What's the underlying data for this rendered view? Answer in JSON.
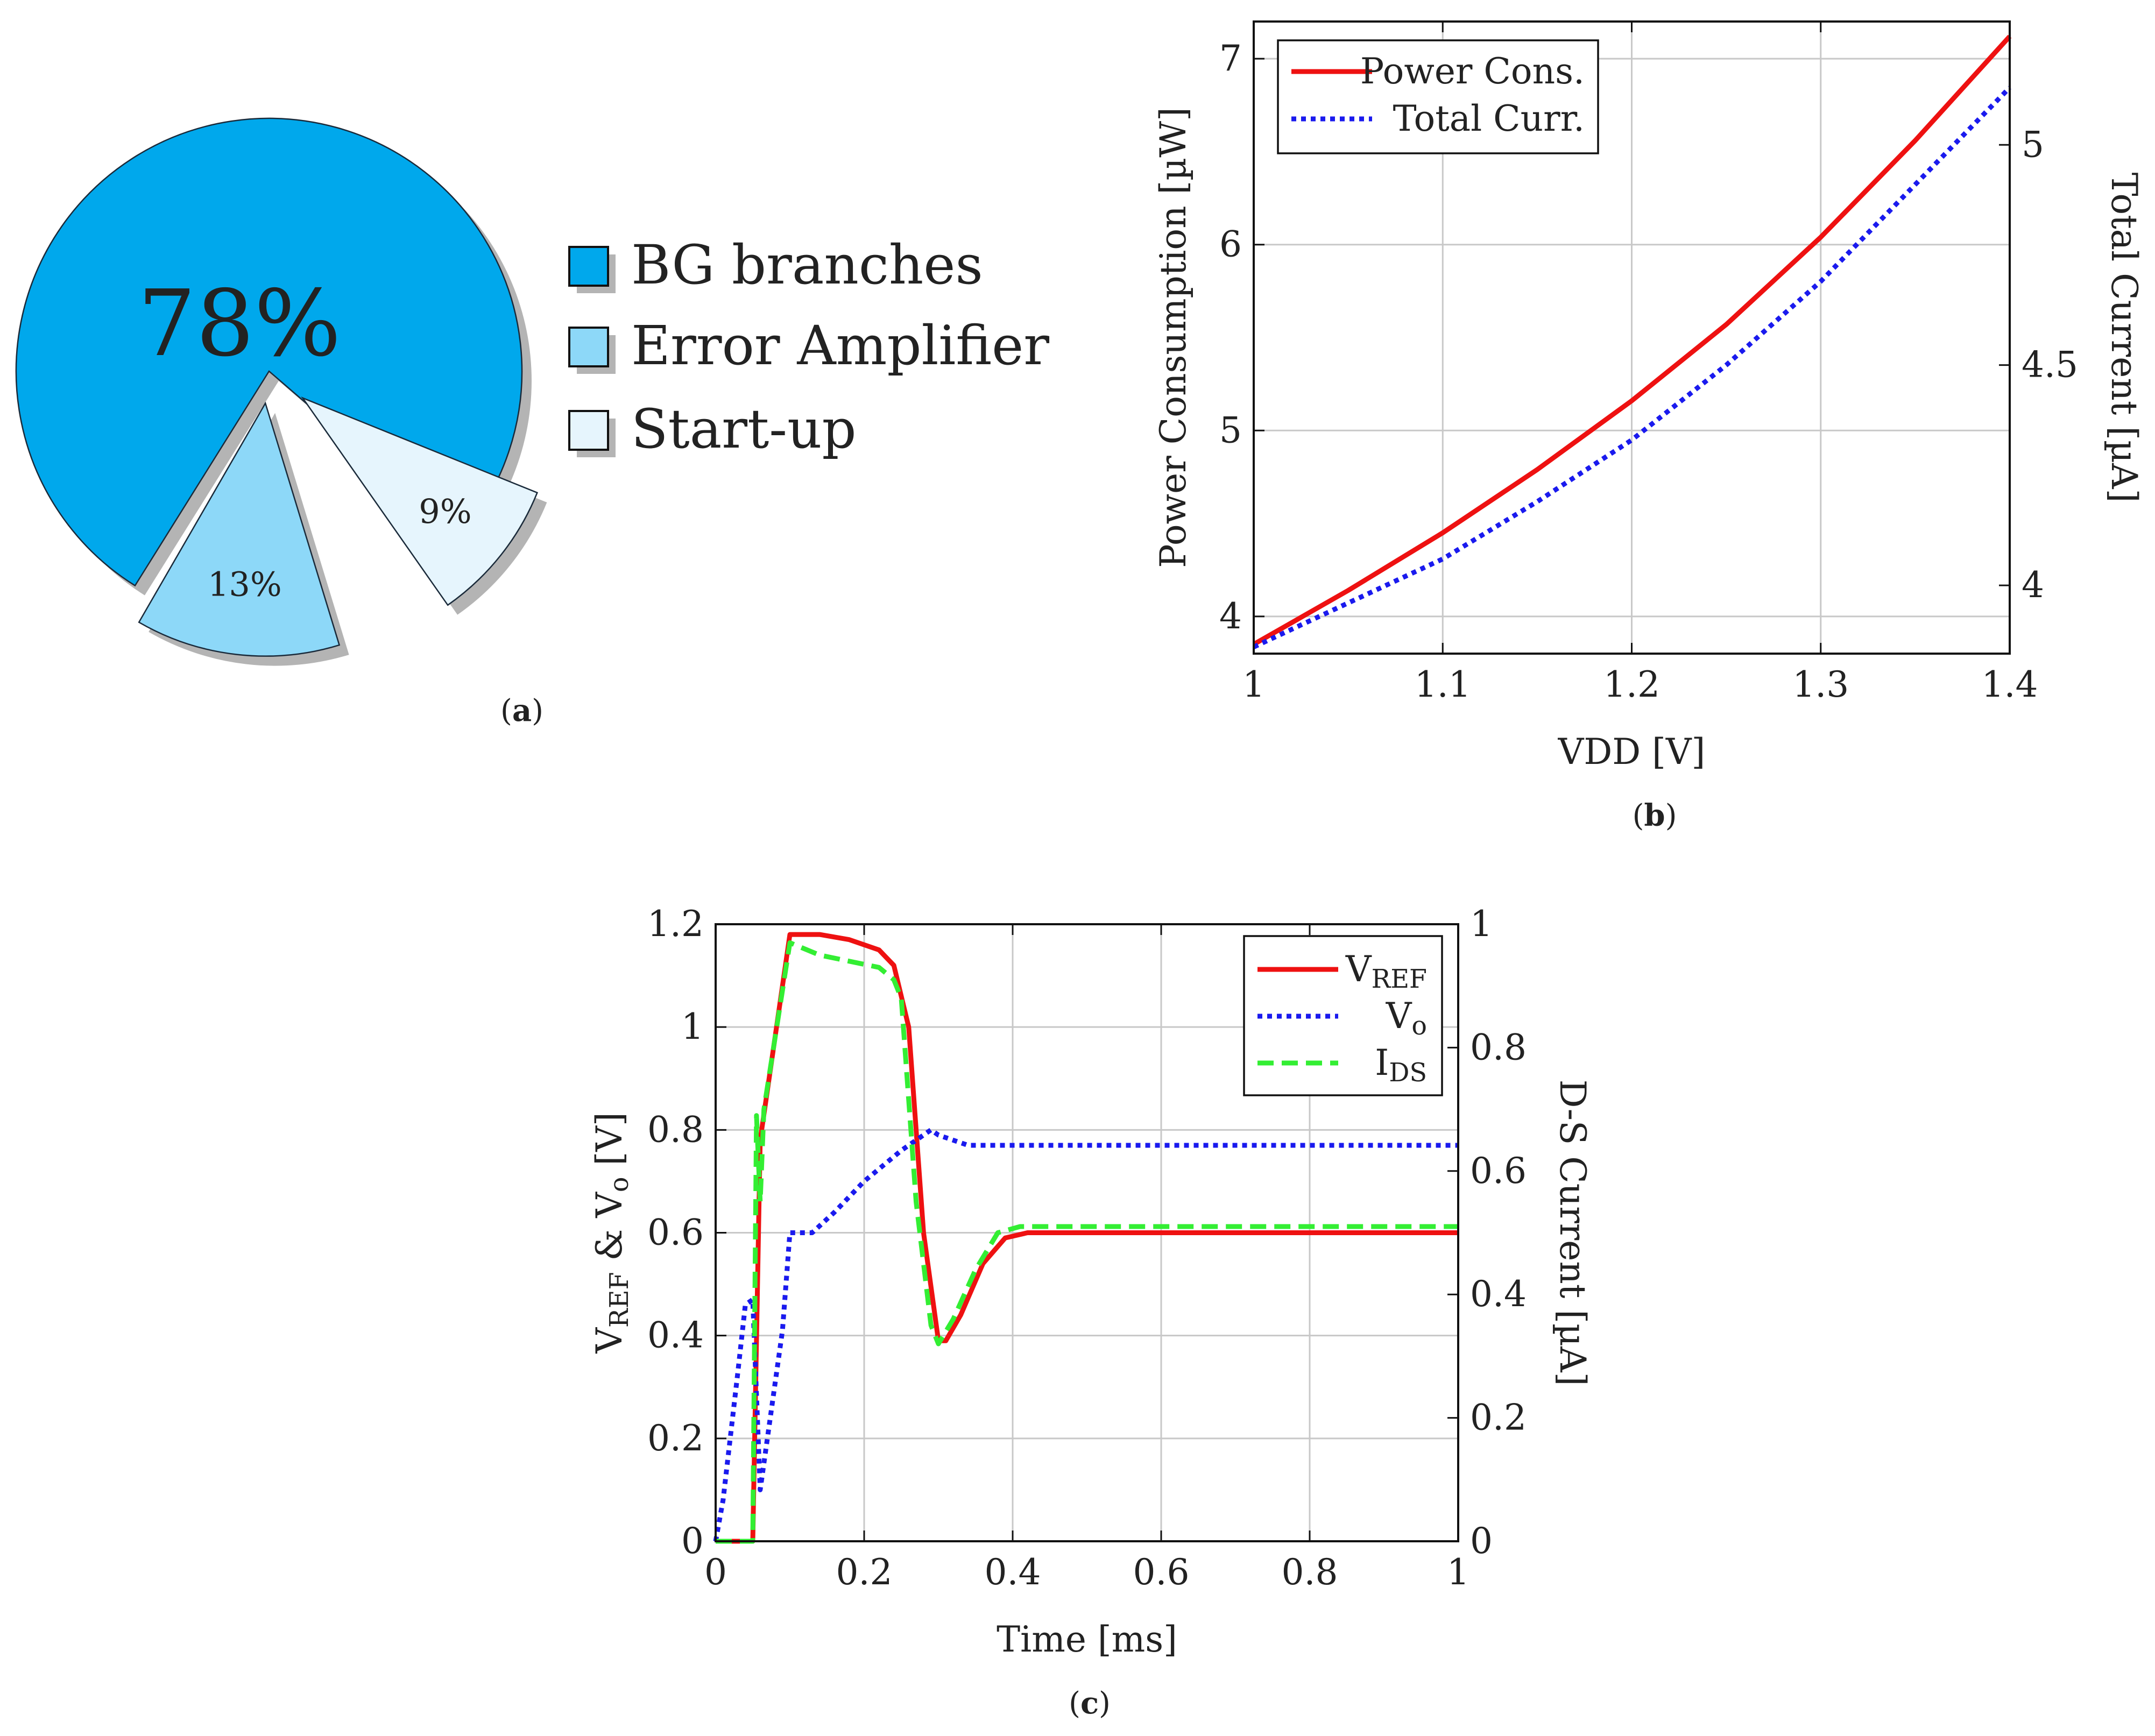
{
  "captions": {
    "a": "a",
    "b": "b",
    "c": "c"
  },
  "colors": {
    "red": "#ee1111",
    "blue": "#1a1aee",
    "green": "#33ee33",
    "grid": "#c8c8c8",
    "slice_main": "#00a8ec",
    "slice_err": "#8dd8f8",
    "slice_start": "#e6f5fd"
  },
  "chart_data": [
    {
      "id": "a",
      "type": "pie",
      "slices": [
        {
          "label": "BG branches",
          "value": 78,
          "text": "78%",
          "color": "#00a8ec"
        },
        {
          "label": "Error Amplifier",
          "value": 13,
          "text": "13%",
          "color": "#8dd8f8"
        },
        {
          "label": "Start-up",
          "value": 9,
          "text": "9%",
          "color": "#e6f5fd"
        }
      ],
      "legend_position": "right"
    },
    {
      "id": "b",
      "type": "line",
      "xlabel": "VDD [V]",
      "ylabel": "Power Consumption [µW]",
      "y2label": "Total Current [µA]",
      "xlim": [
        1,
        1.4
      ],
      "ylim": [
        3.8,
        7.2
      ],
      "y2lim": [
        3.845,
        5.28
      ],
      "xticks": [
        "1",
        "1.1",
        "1.2",
        "1.3",
        "1.4"
      ],
      "yticks": [
        "4",
        "5",
        "6",
        "7"
      ],
      "y2ticks": [
        "4",
        "4.5",
        "5"
      ],
      "grid": true,
      "legend_position": "top-left",
      "series": [
        {
          "name": "Power Cons.",
          "axis": "left",
          "style": "solid",
          "color": "#ee1111",
          "x": [
            1.0,
            1.05,
            1.1,
            1.15,
            1.2,
            1.25,
            1.3,
            1.35,
            1.4
          ],
          "y": [
            3.85,
            4.14,
            4.45,
            4.79,
            5.16,
            5.57,
            6.04,
            6.56,
            7.12
          ]
        },
        {
          "name": "Total Curr.",
          "axis": "right",
          "style": "dotted",
          "color": "#1a1aee",
          "x": [
            1.0,
            1.05,
            1.1,
            1.15,
            1.2,
            1.25,
            1.3,
            1.35,
            1.4
          ],
          "y": [
            3.86,
            3.96,
            4.06,
            4.19,
            4.33,
            4.5,
            4.69,
            4.91,
            5.13
          ]
        }
      ]
    },
    {
      "id": "c",
      "type": "line",
      "xlabel": "Time [ms]",
      "ylabel": "V<sub>REF</sub> & V<sub>o</sub> [V]",
      "ylabel_parts": [
        "V",
        "REF",
        " & V",
        "o",
        " [V]"
      ],
      "y2label": "D-S Current [µA]",
      "xlim": [
        0,
        1
      ],
      "ylim": [
        0,
        1.2
      ],
      "y2lim": [
        0,
        1
      ],
      "xticks": [
        "0",
        "0.2",
        "0.4",
        "0.6",
        "0.8",
        "1"
      ],
      "yticks": [
        "0",
        "0.2",
        "0.4",
        "0.6",
        "0.8",
        "1",
        "1.2"
      ],
      "y2ticks": [
        "0",
        "0.2",
        "0.4",
        "0.6",
        "0.8",
        "1"
      ],
      "grid": true,
      "legend_position": "top-right",
      "series": [
        {
          "name": "V_REF",
          "name_parts": [
            "V",
            "REF"
          ],
          "axis": "left",
          "style": "solid",
          "color": "#ee1111",
          "x": [
            0,
            0.05,
            0.06,
            0.1,
            0.14,
            0.18,
            0.22,
            0.24,
            0.26,
            0.28,
            0.3,
            0.31,
            0.33,
            0.36,
            0.39,
            0.42,
            1.0
          ],
          "y": [
            0,
            0,
            0.78,
            1.18,
            1.18,
            1.17,
            1.15,
            1.12,
            1.0,
            0.6,
            0.39,
            0.39,
            0.44,
            0.54,
            0.59,
            0.6,
            0.6
          ]
        },
        {
          "name": "V_o",
          "name_parts": [
            "V",
            "o"
          ],
          "axis": "left",
          "style": "dotted",
          "color": "#1a1aee",
          "x": [
            0,
            0.01,
            0.03,
            0.04,
            0.05,
            0.06,
            0.09,
            0.1,
            0.13,
            0.16,
            0.2,
            0.25,
            0.29,
            0.3,
            0.34,
            0.4,
            1.0
          ],
          "y": [
            0,
            0.08,
            0.33,
            0.46,
            0.47,
            0.1,
            0.41,
            0.6,
            0.6,
            0.64,
            0.7,
            0.76,
            0.8,
            0.79,
            0.77,
            0.77,
            0.77
          ]
        },
        {
          "name": "I_DS",
          "name_parts": [
            "I",
            "DS"
          ],
          "axis": "right",
          "style": "dashed",
          "color": "#33ee33",
          "x": [
            0,
            0.05,
            0.055,
            0.06,
            0.065,
            0.1,
            0.14,
            0.18,
            0.22,
            0.24,
            0.25,
            0.27,
            0.29,
            0.3,
            0.32,
            0.35,
            0.38,
            0.41,
            1.0
          ],
          "y": [
            0,
            0,
            0.69,
            0.55,
            0.7,
            0.97,
            0.95,
            0.94,
            0.93,
            0.91,
            0.88,
            0.55,
            0.35,
            0.32,
            0.36,
            0.44,
            0.5,
            0.51,
            0.51
          ]
        }
      ]
    }
  ]
}
